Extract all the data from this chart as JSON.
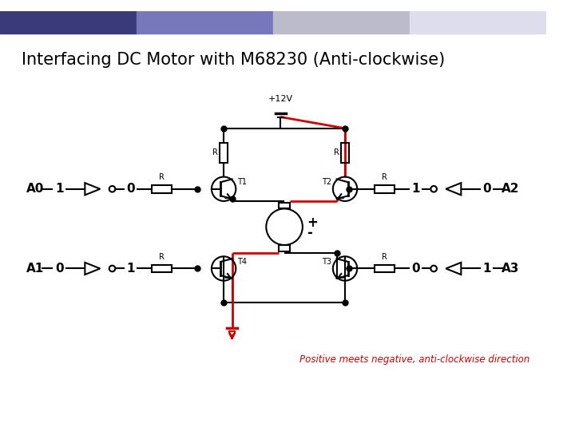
{
  "title": "Interfacing DC Motor with M68230 (Anti-clockwise)",
  "title_fontsize": 15,
  "bg_color": "#ffffff",
  "line_color": "#000000",
  "red_color": "#cc0000",
  "annotation_color": "#cc0000",
  "annotation_text": "Positive meets negative, anti-clockwise direction",
  "plus12v_label": "+12V",
  "motor_plus": "+",
  "motor_minus": "-",
  "header_colors": [
    "#3a3a7a",
    "#7777bb",
    "#bbbbcc",
    "#ddddee"
  ],
  "A0_vals": [
    "1",
    "0"
  ],
  "A1_vals": [
    "0",
    "1"
  ],
  "A2_vals": [
    "1",
    "0"
  ],
  "A3_vals": [
    "0",
    "1"
  ],
  "T_labels": [
    "T1",
    "T2",
    "T3",
    "T4"
  ]
}
